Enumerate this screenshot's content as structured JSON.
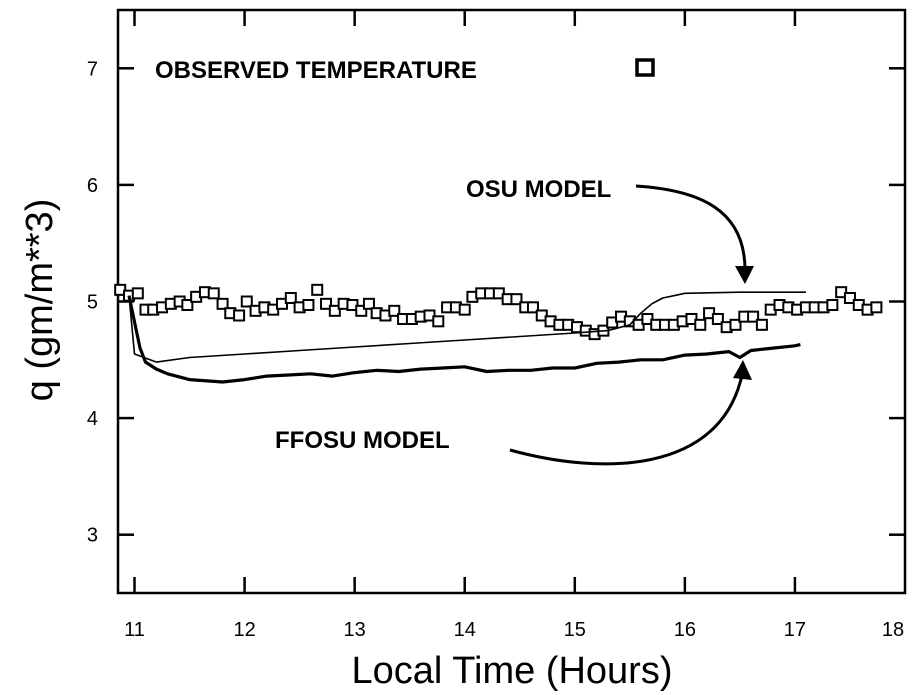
{
  "chart_data": {
    "type": "line",
    "xlabel": "Local Time (Hours)",
    "ylabel": "q  (gm/m**3)",
    "xlim": [
      10.85,
      18.0
    ],
    "ylim": [
      2.5,
      7.5
    ],
    "xticks": [
      11,
      12,
      13,
      14,
      15,
      16,
      17,
      18
    ],
    "yticks": [
      3,
      4,
      5,
      6,
      7
    ],
    "grid": false,
    "annotations": [
      {
        "key": "observed",
        "text": "OBSERVED TEMPERATURE"
      },
      {
        "key": "osu",
        "text": "OSU MODEL"
      },
      {
        "key": "ffosu",
        "text": "FFOSU MODEL"
      }
    ],
    "series": [
      {
        "name": "OBSERVED TEMPERATURE",
        "style": "square-markers",
        "x": [
          10.87,
          10.95,
          11.03,
          11.1,
          11.17,
          11.25,
          11.33,
          11.41,
          11.48,
          11.56,
          11.64,
          11.72,
          11.8,
          11.87,
          11.95,
          12.02,
          12.1,
          12.18,
          12.26,
          12.34,
          12.42,
          12.5,
          12.58,
          12.66,
          12.74,
          12.82,
          12.9,
          12.98,
          13.06,
          13.13,
          13.2,
          13.28,
          13.36,
          13.44,
          13.52,
          13.6,
          13.68,
          13.76,
          13.84,
          13.92,
          14.0,
          14.07,
          14.15,
          14.23,
          14.31,
          14.39,
          14.47,
          14.55,
          14.62,
          14.7,
          14.78,
          14.86,
          14.94,
          15.02,
          15.1,
          15.18,
          15.26,
          15.34,
          15.42,
          15.5,
          15.58,
          15.66,
          15.74,
          15.82,
          15.9,
          15.98,
          16.06,
          16.14,
          16.22,
          16.3,
          16.38,
          16.46,
          16.54,
          16.62,
          16.7,
          16.78,
          16.86,
          16.94,
          17.02,
          17.1,
          17.18,
          17.26,
          17.34,
          17.42,
          17.5,
          17.58,
          17.66,
          17.74
        ],
        "y": [
          5.1,
          5.05,
          5.07,
          4.93,
          4.93,
          4.95,
          4.98,
          5.0,
          4.97,
          5.04,
          5.08,
          5.07,
          4.98,
          4.9,
          4.88,
          5.0,
          4.92,
          4.95,
          4.93,
          4.98,
          5.03,
          4.95,
          4.97,
          5.1,
          4.98,
          4.92,
          4.98,
          4.97,
          4.92,
          4.98,
          4.9,
          4.88,
          4.92,
          4.85,
          4.85,
          4.87,
          4.88,
          4.83,
          4.95,
          4.95,
          4.93,
          5.04,
          5.07,
          5.07,
          5.07,
          5.02,
          5.02,
          4.95,
          4.95,
          4.88,
          4.83,
          4.8,
          4.8,
          4.78,
          4.75,
          4.72,
          4.75,
          4.82,
          4.87,
          4.83,
          4.8,
          4.85,
          4.8,
          4.8,
          4.8,
          4.83,
          4.85,
          4.8,
          4.9,
          4.85,
          4.78,
          4.8,
          4.87,
          4.87,
          4.8,
          4.93,
          4.97,
          4.95,
          4.93,
          4.95,
          4.95,
          4.95,
          4.97,
          5.08,
          5.03,
          4.97,
          4.93,
          4.95
        ]
      },
      {
        "name": "OSU MODEL",
        "style": "thin-line",
        "x": [
          10.95,
          11.0,
          11.2,
          11.5,
          12.0,
          12.5,
          13.0,
          13.5,
          14.0,
          14.5,
          15.0,
          15.3,
          15.5,
          15.6,
          15.7,
          15.8,
          15.9,
          16.0,
          16.5,
          17.0,
          17.1
        ],
        "y": [
          5.05,
          4.55,
          4.48,
          4.52,
          4.55,
          4.58,
          4.61,
          4.64,
          4.67,
          4.7,
          4.73,
          4.75,
          4.8,
          4.9,
          4.98,
          5.03,
          5.05,
          5.07,
          5.08,
          5.08,
          5.08
        ]
      },
      {
        "name": "FFOSU MODEL",
        "style": "thick-line",
        "x": [
          10.95,
          11.05,
          11.1,
          11.2,
          11.3,
          11.5,
          11.8,
          12.0,
          12.2,
          12.4,
          12.6,
          12.8,
          13.0,
          13.2,
          13.4,
          13.6,
          13.8,
          14.0,
          14.2,
          14.4,
          14.6,
          14.8,
          15.0,
          15.2,
          15.4,
          15.6,
          15.8,
          16.0,
          16.2,
          16.4,
          16.5,
          16.6,
          16.8,
          17.0,
          17.05
        ],
        "y": [
          5.05,
          4.6,
          4.48,
          4.42,
          4.38,
          4.33,
          4.31,
          4.33,
          4.36,
          4.37,
          4.38,
          4.36,
          4.39,
          4.41,
          4.4,
          4.42,
          4.43,
          4.44,
          4.4,
          4.41,
          4.41,
          4.43,
          4.43,
          4.47,
          4.48,
          4.5,
          4.5,
          4.54,
          4.55,
          4.57,
          4.52,
          4.58,
          4.6,
          4.62,
          4.63
        ]
      }
    ]
  }
}
